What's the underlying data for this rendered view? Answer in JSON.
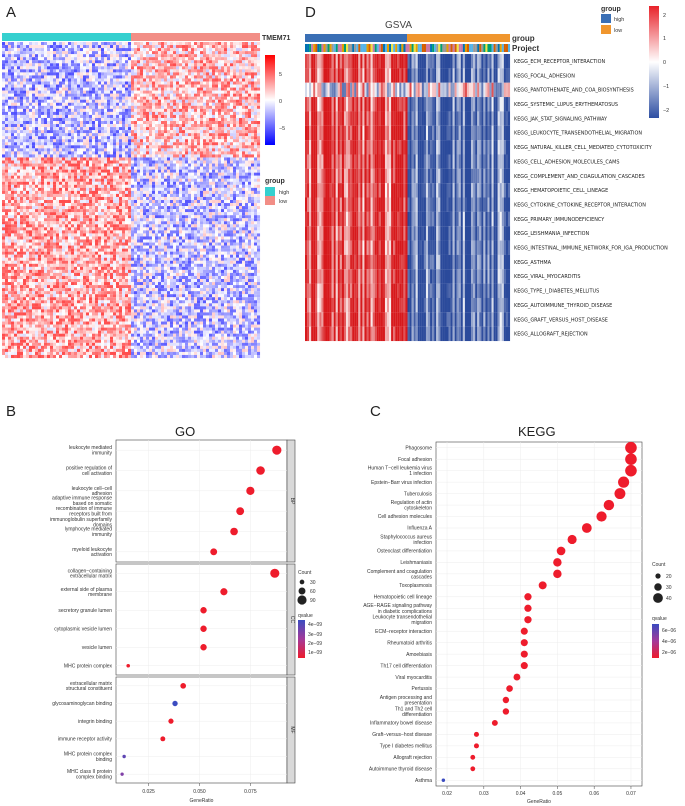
{
  "panels": {
    "A": "A",
    "B": "B",
    "C": "C",
    "D": "D"
  },
  "heatmap_a": {
    "gene_label": "TMEM71",
    "colorbar_ticks": [
      "5",
      "0",
      "−5"
    ],
    "legend_title": "group",
    "legend_items": [
      {
        "label": "high",
        "color": "#35d0cf"
      },
      {
        "label": "low",
        "color": "#f28e86"
      }
    ],
    "colors": {
      "high": "#ff0000",
      "mid": "#ffffff",
      "low": "#0000ff"
    }
  },
  "heatmap_d": {
    "title": "GSVA",
    "annotation_labels": [
      "group",
      "Project"
    ],
    "legend_title": "group",
    "legend_items": [
      {
        "label": "high",
        "color": "#3a6fb5"
      },
      {
        "label": "low",
        "color": "#f0962e"
      }
    ],
    "colorbar_ticks": [
      "2",
      "1",
      "0",
      "−1",
      "−2"
    ],
    "pathways": [
      "KEGG_ECM_RECEPTOR_INTERACTION",
      "KEGG_FOCAL_ADHESION",
      "KEGG_PANTOTHENATE_AND_COA_BIOSYNTHESIS",
      "KEGG_SYSTEMIC_LUPUS_ERYTHEMATOSUS",
      "KEGG_JAK_STAT_SIGNALING_PATHWAY",
      "KEGG_LEUKOCYTE_TRANSENDOTHELIAL_MIGRATION",
      "KEGG_NATURAL_KILLER_CELL_MEDIATED_CYTOTOXICITY",
      "KEGG_CELL_ADHESION_MOLECULES_CAMS",
      "KEGG_COMPLEMENT_AND_COAGULATION_CASCADES",
      "KEGG_HEMATOPOIETIC_CELL_LINEAGE",
      "KEGG_CYTOKINE_CYTOKINE_RECEPTOR_INTERACTION",
      "KEGG_PRIMARY_IMMUNODEFICIENCY",
      "KEGG_LEISHMANIA_INFECTION",
      "KEGG_INTESTINAL_IMMUNE_NETWORK_FOR_IGA_PRODUCTION",
      "KEGG_ASTHMA",
      "KEGG_VIRAL_MYOCARDITIS",
      "KEGG_TYPE_I_DIABETES_MELLITUS",
      "KEGG_AUTOIMMUNE_THYROID_DISEASE",
      "KEGG_GRAFT_VERSUS_HOST_DISEASE",
      "KEGG_ALLOGRAFT_REJECTION"
    ]
  },
  "chart_data": [
    {
      "type": "scatter",
      "panel": "B",
      "title": "GO",
      "xlabel": "GeneRatio",
      "xlim": [
        0.009,
        0.093
      ],
      "xticks": [
        0.025,
        0.05,
        0.075
      ],
      "xtick_labels": [
        "0.025",
        "0.050",
        "0.075"
      ],
      "facets": [
        {
          "name": "BP",
          "terms": [
            {
              "label": "leukocyte mediated immunity",
              "x": 0.088,
              "count": 90,
              "q": 1e-09
            },
            {
              "label": "positive regulation of cell activation",
              "x": 0.08,
              "count": 82,
              "q": 1e-09
            },
            {
              "label": "leukocyte cell−cell adhesion",
              "x": 0.075,
              "count": 77,
              "q": 1e-09
            },
            {
              "label": "adaptive immune response based on somatic recombination of immune receptors built from immunoglobulin superfamily domains",
              "x": 0.07,
              "count": 72,
              "q": 1e-09
            },
            {
              "label": "lymphocyte mediated immunity",
              "x": 0.067,
              "count": 69,
              "q": 1e-09
            },
            {
              "label": "myeloid leukocyte activation",
              "x": 0.057,
              "count": 59,
              "q": 1e-09
            }
          ]
        },
        {
          "name": "CC",
          "terms": [
            {
              "label": "collagen−containing extracellular matrix",
              "x": 0.087,
              "count": 89,
              "q": 1e-09
            },
            {
              "label": "external side of plasma membrane",
              "x": 0.062,
              "count": 63,
              "q": 1e-09
            },
            {
              "label": "secretory granule lumen",
              "x": 0.052,
              "count": 53,
              "q": 1e-09
            },
            {
              "label": "cytoplasmic vesicle lumen",
              "x": 0.052,
              "count": 53,
              "q": 1e-09
            },
            {
              "label": "vesicle lumen",
              "x": 0.052,
              "count": 53,
              "q": 1e-09
            },
            {
              "label": "MHC protein complex",
              "x": 0.015,
              "count": 15,
              "q": 1e-09
            }
          ]
        },
        {
          "name": "MF",
          "terms": [
            {
              "label": "extracellular matrix structural constituent",
              "x": 0.042,
              "count": 43,
              "q": 1e-09
            },
            {
              "label": "glycosaminoglycan binding",
              "x": 0.038,
              "count": 39,
              "q": 4e-09
            },
            {
              "label": "integrin binding",
              "x": 0.036,
              "count": 37,
              "q": 1e-09
            },
            {
              "label": "immune receptor activity",
              "x": 0.032,
              "count": 33,
              "q": 1e-09
            },
            {
              "label": "MHC protein complex binding",
              "x": 0.013,
              "count": 13,
              "q": 3.5e-09
            },
            {
              "label": "MHC class II protein complex binding",
              "x": 0.012,
              "count": 12,
              "q": 3e-09
            }
          ]
        }
      ],
      "legend": {
        "count_title": "Count",
        "count_values": [
          30,
          60,
          90
        ],
        "q_title": "qvalue",
        "q_labels": [
          "4e−09",
          "3e−09",
          "2e−09",
          "1e−09"
        ]
      }
    },
    {
      "type": "scatter",
      "panel": "C",
      "title": "KEGG",
      "xlabel": "GeneRatio",
      "xlim": [
        0.017,
        0.073
      ],
      "xticks": [
        0.02,
        0.03,
        0.04,
        0.05,
        0.06,
        0.07
      ],
      "xtick_labels": [
        "0.02",
        "0.03",
        "0.04",
        "0.05",
        "0.06",
        "0.07"
      ],
      "terms": [
        {
          "label": "Phagosome",
          "x": 0.07,
          "count": 48,
          "q": 1e-06
        },
        {
          "label": "Focal adhesion",
          "x": 0.07,
          "count": 48,
          "q": 1e-06
        },
        {
          "label": "Human T−cell leukemia virus 1 infection",
          "x": 0.07,
          "count": 48,
          "q": 1e-06
        },
        {
          "label": "Epstein−Barr virus infection",
          "x": 0.068,
          "count": 46,
          "q": 1e-06
        },
        {
          "label": "Tuberculosis",
          "x": 0.067,
          "count": 45,
          "q": 1e-06
        },
        {
          "label": "Regulation of actin cytoskeleton",
          "x": 0.064,
          "count": 43,
          "q": 1e-06
        },
        {
          "label": "Cell adhesion molecules",
          "x": 0.062,
          "count": 42,
          "q": 1e-06
        },
        {
          "label": "Influenza A",
          "x": 0.058,
          "count": 40,
          "q": 1e-06
        },
        {
          "label": "Staphylococcus aureus infection",
          "x": 0.054,
          "count": 37,
          "q": 1e-06
        },
        {
          "label": "Osteoclast differentiation",
          "x": 0.051,
          "count": 35,
          "q": 1e-06
        },
        {
          "label": "Leishmaniasis",
          "x": 0.05,
          "count": 34,
          "q": 1e-06
        },
        {
          "label": "Complement and coagulation cascades",
          "x": 0.05,
          "count": 34,
          "q": 1e-06
        },
        {
          "label": "Toxoplasmosis",
          "x": 0.046,
          "count": 32,
          "q": 1e-06
        },
        {
          "label": "Hematopoietic cell lineage",
          "x": 0.042,
          "count": 29,
          "q": 1e-06
        },
        {
          "label": "AGE−RAGE signaling pathway in diabetic complications",
          "x": 0.042,
          "count": 29,
          "q": 1e-06
        },
        {
          "label": "Leukocyte transendothelial migration",
          "x": 0.042,
          "count": 29,
          "q": 1e-06
        },
        {
          "label": "ECM−receptor interaction",
          "x": 0.041,
          "count": 28,
          "q": 1e-06
        },
        {
          "label": "Rheumatoid arthritis",
          "x": 0.041,
          "count": 28,
          "q": 1e-06
        },
        {
          "label": "Amoebiasis",
          "x": 0.041,
          "count": 28,
          "q": 1e-06
        },
        {
          "label": "Th17 cell differentiation",
          "x": 0.041,
          "count": 28,
          "q": 1e-06
        },
        {
          "label": "Viral myocarditis",
          "x": 0.039,
          "count": 27,
          "q": 1e-06
        },
        {
          "label": "Pertussis",
          "x": 0.037,
          "count": 26,
          "q": 1e-06
        },
        {
          "label": "Antigen processing and presentation",
          "x": 0.036,
          "count": 25,
          "q": 1e-06
        },
        {
          "label": "Th1 and Th2 cell differentiation",
          "x": 0.036,
          "count": 25,
          "q": 1e-06
        },
        {
          "label": "Inflammatory bowel disease",
          "x": 0.033,
          "count": 23,
          "q": 1e-06
        },
        {
          "label": "Graft−versus−host disease",
          "x": 0.028,
          "count": 19,
          "q": 1e-06
        },
        {
          "label": "Type I diabetes mellitus",
          "x": 0.028,
          "count": 19,
          "q": 1e-06
        },
        {
          "label": "Allograft rejection",
          "x": 0.027,
          "count": 18,
          "q": 1e-06
        },
        {
          "label": "Autoimmune thyroid disease",
          "x": 0.027,
          "count": 18,
          "q": 1e-06
        },
        {
          "label": "Asthma",
          "x": 0.019,
          "count": 12,
          "q": 7e-06
        }
      ],
      "legend": {
        "count_title": "Count",
        "count_values": [
          20,
          30,
          40
        ],
        "q_title": "qvalue",
        "q_labels": [
          "6e−06",
          "4e−06",
          "2e−06"
        ]
      }
    }
  ]
}
